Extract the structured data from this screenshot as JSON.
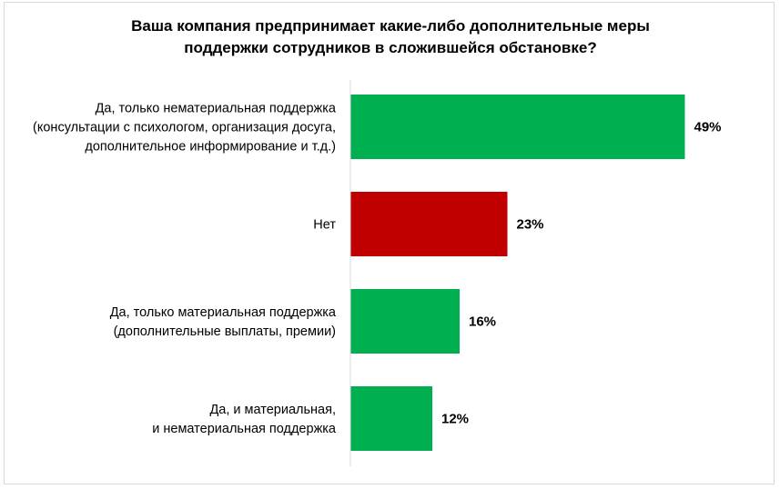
{
  "chart_data": {
    "type": "bar",
    "orientation": "horizontal",
    "title": "Ваша компания предпринимает какие-либо дополнительные меры поддержки сотрудников в сложившейся обстановке?",
    "title_lines": [
      "Ваша компания предпринимает какие-либо дополнительные меры",
      "поддержки сотрудников в сложившейся обстановке?"
    ],
    "categories": [
      "Да, только нематериальная поддержка (консультации с психологом, организация досуга, дополнительное информирование и т.д.)",
      "Нет",
      "Да, только материальная поддержка (дополнительные выплаты, премии)",
      "Да, и материальная, и нематериальная поддержка"
    ],
    "category_lines": [
      [
        "Да, только нематериальная поддержка",
        "(консультации с психологом, организация досуга,",
        "дополнительное информирование и т.д.)"
      ],
      [
        "Нет"
      ],
      [
        "Да, только материальная поддержка",
        "(дополнительные выплаты, премии)"
      ],
      [
        "Да, и материальная,",
        "и нематериальная поддержка"
      ]
    ],
    "values": [
      49,
      23,
      16,
      12
    ],
    "value_labels": [
      "49%",
      "23%",
      "16%",
      "12%"
    ],
    "unit": "%",
    "bar_colors": [
      "#00b050",
      "#c00000",
      "#00b050",
      "#00b050"
    ],
    "xlim": [
      0,
      100
    ],
    "grid": false,
    "legend": "none"
  }
}
